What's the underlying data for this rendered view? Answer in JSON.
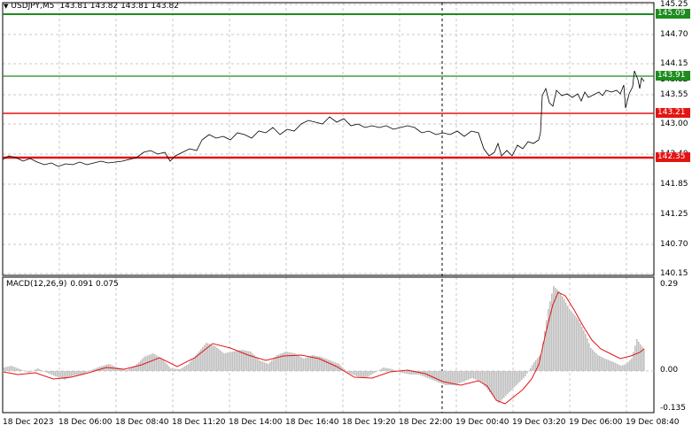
{
  "header": {
    "symbol": "USDJPY,M5",
    "ohlc": "143.81 143.82 143.81 143.82"
  },
  "price_axis": [
    "145.25",
    "144.70",
    "144.15",
    "143.55",
    "143.00",
    "142.40",
    "141.85",
    "141.25",
    "140.70",
    "140.15"
  ],
  "current_price": "143.82",
  "levels": [
    {
      "label": "145.09",
      "color": "#1e8b1e"
    },
    {
      "label": "143.91",
      "color": "#1e8b1e"
    },
    {
      "label": "143.21",
      "color": "#e41414"
    },
    {
      "label": "142.35",
      "color": "#e41414"
    }
  ],
  "macd": {
    "name": "MACD(12,26,9)",
    "values": "0.091 0.075",
    "axis": [
      "0.29",
      "0.00",
      "-0.135"
    ]
  },
  "time_axis": [
    "18 Dec 2023",
    "18 Dec 06:00",
    "18 Dec 08:40",
    "18 Dec 11:20",
    "18 Dec 14:00",
    "18 Dec 16:40",
    "18 Dec 19:20",
    "18 Dec 22:00",
    "19 Dec 00:40",
    "19 Dec 03:20",
    "19 Dec 06:00",
    "19 Dec 08:40"
  ],
  "colors": {
    "price_line": "#000000",
    "macd_hist": "#c0c0c0",
    "signal": "#e41414",
    "grid": "#c8c8c8"
  }
}
